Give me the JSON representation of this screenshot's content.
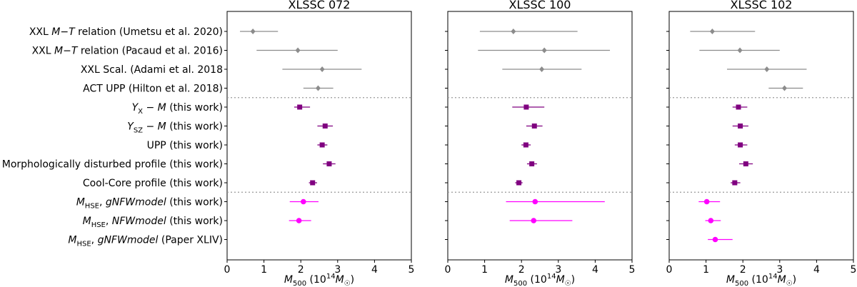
{
  "chart_data": {
    "type": "errorbar",
    "shared_row_labels": [
      "XXL M−T relation (Umetsu et al. 2020)",
      "XXL M−T relation (Pacaud et al. 2016)",
      "XXL Scal. (Adami et al. 2018",
      "ACT UPP (Hilton et al. 2018)",
      "Y_X − M (this work)",
      "Y_SZ − M (this work)",
      "UPP (this work)",
      "Morphologically disturbed profile (this work)",
      "Cool-Core profile (this work)",
      "M_HSE, gNFWmodel (this work)",
      "M_HSE, NFWmodel (this work)",
      "M_HSE, gNFWmodel (Paper XLIV)"
    ],
    "xlabel": "M500 (10^14 M☉)",
    "xlim": [
      0,
      5
    ],
    "xticks": [
      "0",
      "1",
      "2",
      "3",
      "4",
      "5"
    ],
    "group_separators_after_row": [
      3,
      8
    ],
    "colors": {
      "literature": "#8c8c8c",
      "scaling": "#800080",
      "hse": "#ff00ff",
      "separator": "#999999"
    },
    "panels": [
      {
        "title": "XLSSC 072",
        "points": [
          {
            "value": 0.7,
            "low": 0.35,
            "high": 1.38,
            "group": "literature",
            "marker": "diamond"
          },
          {
            "value": 1.92,
            "low": 0.8,
            "high": 3.0,
            "group": "literature",
            "marker": "diamond"
          },
          {
            "value": 2.58,
            "low": 1.5,
            "high": 3.65,
            "group": "literature",
            "marker": "diamond"
          },
          {
            "value": 2.47,
            "low": 2.07,
            "high": 2.88,
            "group": "literature",
            "marker": "diamond"
          },
          {
            "value": 1.97,
            "low": 1.82,
            "high": 2.25,
            "group": "scaling",
            "marker": "square"
          },
          {
            "value": 2.66,
            "low": 2.45,
            "high": 2.87,
            "group": "scaling",
            "marker": "square"
          },
          {
            "value": 2.58,
            "low": 2.45,
            "high": 2.72,
            "group": "scaling",
            "marker": "square"
          },
          {
            "value": 2.77,
            "low": 2.6,
            "high": 2.94,
            "group": "scaling",
            "marker": "square"
          },
          {
            "value": 2.32,
            "low": 2.22,
            "high": 2.44,
            "group": "scaling",
            "marker": "square"
          },
          {
            "value": 2.07,
            "low": 1.7,
            "high": 2.48,
            "group": "hse",
            "marker": "circle"
          },
          {
            "value": 1.95,
            "low": 1.68,
            "high": 2.28,
            "group": "hse",
            "marker": "circle"
          },
          null
        ]
      },
      {
        "title": "XLSSC 100",
        "points": [
          {
            "value": 1.78,
            "low": 0.87,
            "high": 3.52,
            "group": "literature",
            "marker": "diamond"
          },
          {
            "value": 2.62,
            "low": 0.82,
            "high": 4.4,
            "group": "literature",
            "marker": "diamond"
          },
          {
            "value": 2.55,
            "low": 1.48,
            "high": 3.63,
            "group": "literature",
            "marker": "diamond"
          },
          null,
          {
            "value": 2.13,
            "low": 1.75,
            "high": 2.62,
            "group": "scaling",
            "marker": "square"
          },
          {
            "value": 2.35,
            "low": 2.13,
            "high": 2.57,
            "group": "scaling",
            "marker": "square"
          },
          {
            "value": 2.12,
            "low": 2.0,
            "high": 2.25,
            "group": "scaling",
            "marker": "square"
          },
          {
            "value": 2.28,
            "low": 2.15,
            "high": 2.42,
            "group": "scaling",
            "marker": "square"
          },
          {
            "value": 1.93,
            "low": 1.83,
            "high": 2.03,
            "group": "scaling",
            "marker": "square"
          },
          {
            "value": 2.37,
            "low": 1.58,
            "high": 4.26,
            "group": "hse",
            "marker": "circle"
          },
          {
            "value": 2.33,
            "low": 1.68,
            "high": 3.38,
            "group": "hse",
            "marker": "circle"
          },
          null
        ]
      },
      {
        "title": "XLSSC 102",
        "points": [
          {
            "value": 1.17,
            "low": 0.57,
            "high": 2.33,
            "group": "literature",
            "marker": "diamond"
          },
          {
            "value": 1.92,
            "low": 0.82,
            "high": 3.0,
            "group": "literature",
            "marker": "diamond"
          },
          {
            "value": 2.65,
            "low": 1.57,
            "high": 3.73,
            "group": "literature",
            "marker": "diamond"
          },
          {
            "value": 3.13,
            "low": 2.7,
            "high": 3.63,
            "group": "literature",
            "marker": "diamond"
          },
          {
            "value": 1.88,
            "low": 1.72,
            "high": 2.12,
            "group": "scaling",
            "marker": "square"
          },
          {
            "value": 1.93,
            "low": 1.72,
            "high": 2.15,
            "group": "scaling",
            "marker": "square"
          },
          {
            "value": 1.93,
            "low": 1.78,
            "high": 2.12,
            "group": "scaling",
            "marker": "square"
          },
          {
            "value": 2.08,
            "low": 1.9,
            "high": 2.27,
            "group": "scaling",
            "marker": "square"
          },
          {
            "value": 1.78,
            "low": 1.67,
            "high": 1.93,
            "group": "scaling",
            "marker": "square"
          },
          {
            "value": 1.02,
            "low": 0.8,
            "high": 1.38,
            "group": "hse",
            "marker": "circle"
          },
          {
            "value": 1.13,
            "low": 0.98,
            "high": 1.4,
            "group": "hse",
            "marker": "circle"
          },
          {
            "value": 1.25,
            "low": 1.05,
            "high": 1.72,
            "group": "hse",
            "marker": "circle"
          }
        ]
      }
    ]
  }
}
